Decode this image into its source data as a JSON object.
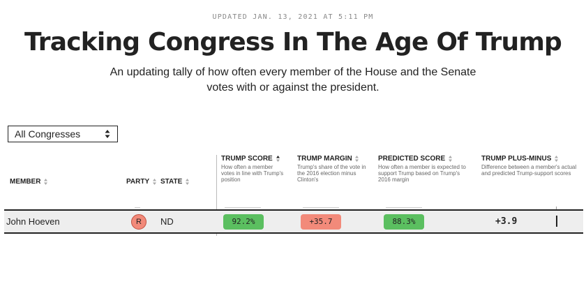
{
  "header": {
    "updated": "UPDATED JAN. 13, 2021 AT 5:11 PM",
    "title": "Tracking Congress In The Age Of Trump",
    "subtitle": "An updating tally of how often every member of the House and the Senate votes with or against the president."
  },
  "filter": {
    "selected": "All Congresses"
  },
  "columns": {
    "member": "MEMBER",
    "party": "PARTY",
    "state": "STATE",
    "trump_score": {
      "label": "TRUMP SCORE",
      "desc": "How often a member votes in line with Trump's position"
    },
    "trump_margin": {
      "label": "TRUMP MARGIN",
      "desc": "Trump's share of the vote in the 2016 election minus Clinton's"
    },
    "predicted_score": {
      "label": "PREDICTED SCORE",
      "desc": "How often a member is expected to support Trump based on Trump's 2016 margin"
    },
    "plus_minus": {
      "label": "TRUMP PLUS-MINUS",
      "desc": "Difference between a member's actual and predicted Trump-support scores"
    }
  },
  "rows": [
    {
      "member": "John Hoeven",
      "party": "R",
      "state": "ND",
      "trump_score": "92.2%",
      "trump_margin": "+35.7",
      "predicted_score": "88.3%",
      "plus_minus": "+3.9"
    }
  ],
  "colors": {
    "green": "#5bbf60",
    "red": "#f28a7a",
    "text": "#222222"
  }
}
